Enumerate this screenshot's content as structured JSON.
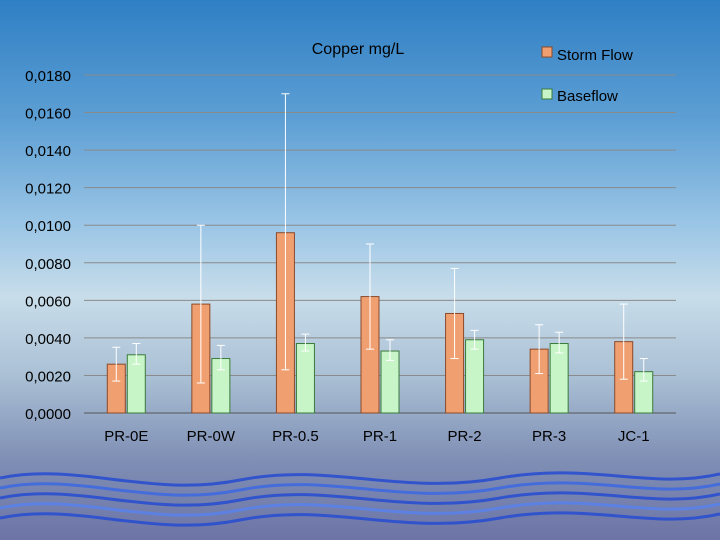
{
  "chart_data": {
    "type": "bar",
    "title": "Copper mg/L",
    "xlabel": "",
    "ylabel": "",
    "ylim": [
      0,
      0.018
    ],
    "yticks": [
      "0,0000",
      "0,0020",
      "0,0040",
      "0,0060",
      "0,0080",
      "0,0100",
      "0,0120",
      "0,0140",
      "0,0160",
      "0,0180"
    ],
    "grid": true,
    "legend_position": "top-right",
    "categories": [
      "PR-0E",
      "PR-0W",
      "PR-0.5",
      "PR-1",
      "PR-2",
      "PR-3",
      "JC-1"
    ],
    "series": [
      {
        "name": "Storm Flow",
        "color": "#f0a070",
        "values": [
          0.0026,
          0.0058,
          0.0096,
          0.0062,
          0.0053,
          0.0034,
          0.0038
        ],
        "err_low": [
          0.0017,
          0.0016,
          0.0023,
          0.0034,
          0.0029,
          0.0021,
          0.0018
        ],
        "err_high": [
          0.0035,
          0.01,
          0.017,
          0.009,
          0.0077,
          0.0047,
          0.0058
        ]
      },
      {
        "name": "Baseflow",
        "color": "#c8f5c8",
        "values": [
          0.0031,
          0.0029,
          0.0037,
          0.0033,
          0.0039,
          0.0037,
          0.0022
        ],
        "err_low": [
          0.0026,
          0.0023,
          0.0033,
          0.0028,
          0.0034,
          0.0032,
          0.0017
        ],
        "err_high": [
          0.0037,
          0.0036,
          0.0042,
          0.0039,
          0.0044,
          0.0043,
          0.0029
        ]
      }
    ]
  }
}
